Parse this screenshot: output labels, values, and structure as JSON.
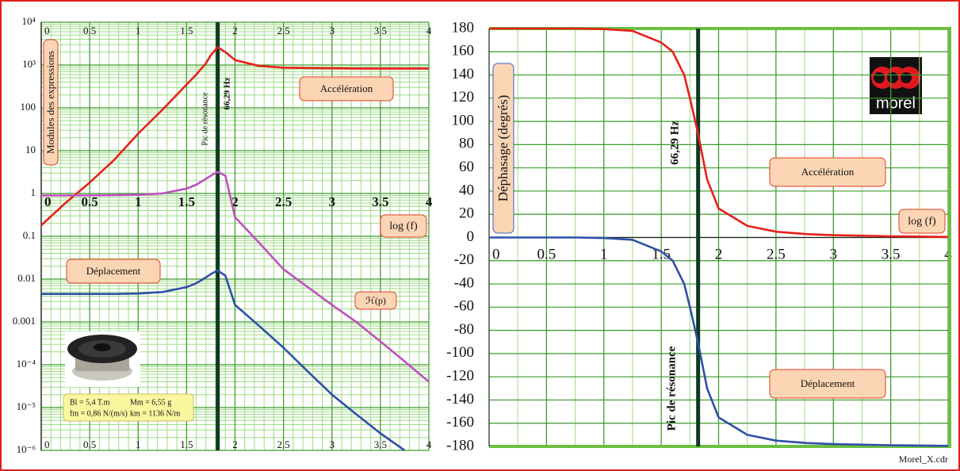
{
  "chart_data": [
    {
      "type": "line",
      "log_y": true,
      "grid": true,
      "minor_grid": true,
      "y_label": "Modules des expressions",
      "x_label": "log (f)",
      "resonance_x": 1.8215,
      "resonance_label": "66,29 Hz",
      "resonance_note": "Pic de résonance",
      "specs": [
        "Bl = 5,4 T.m",
        "Mm = 6,55 g",
        "fm = 0,86 N/(m/s)",
        "km = 1136 N/m"
      ],
      "x": [
        0,
        0.25,
        0.5,
        0.75,
        1,
        1.25,
        1.5,
        1.6,
        1.7,
        1.75,
        1.82,
        1.9,
        2,
        2.25,
        2.5,
        2.75,
        3,
        3.25,
        3.5,
        3.75,
        4
      ],
      "series": [
        {
          "name": "Accélération",
          "color": "#e8201a",
          "values": [
            0.18,
            0.6,
            1.8,
            6,
            25,
            90,
            350,
            600,
            1100,
            1700,
            2600,
            2000,
            1300,
            950,
            870,
            850,
            840,
            830,
            830,
            830,
            830
          ]
        },
        {
          "name": "Déplacement",
          "color": "#2f4fa8",
          "values": [
            0.0045,
            0.0045,
            0.0045,
            0.0045,
            0.0046,
            0.005,
            0.0065,
            0.008,
            0.011,
            0.013,
            0.016,
            0.012,
            0.0025,
            0.0008,
            0.00025,
            7e-05,
            2e-05,
            7e-06,
            2.5e-06,
            1e-06,
            null
          ]
        },
        {
          "name": "ℋ(p)",
          "color": "#c050c0",
          "values": [
            0.9,
            0.9,
            0.9,
            0.91,
            0.93,
            1.0,
            1.3,
            1.6,
            2.2,
            2.6,
            3.2,
            2.6,
            0.28,
            0.07,
            0.017,
            0.0065,
            0.0025,
            0.001,
            0.00035,
            0.00012,
            4e-05
          ]
        }
      ],
      "xlim": [
        0,
        4
      ],
      "xticks": [
        0,
        0.5,
        1,
        1.5,
        2,
        2.5,
        3,
        3.5,
        4
      ],
      "ylim": [
        1e-06,
        10000
      ],
      "yticks": [
        {
          "value": 1e-06,
          "label": "10⁻⁶"
        },
        {
          "value": 1e-05,
          "label": "10⁻⁵"
        },
        {
          "value": 0.0001,
          "label": "10⁻⁴"
        },
        0.001,
        0.01,
        0.1,
        1,
        10,
        100,
        {
          "value": 1000,
          "label": "10³"
        },
        {
          "value": 10000,
          "label": "10⁴"
        }
      ]
    },
    {
      "type": "line",
      "log_y": false,
      "grid": true,
      "minor_grid": true,
      "y_label": "Déphasage (degrés)",
      "x_label": "log (f)",
      "resonance_x": 1.8215,
      "resonance_label": "66,29 Hz",
      "resonance_note": "Pic de résonance",
      "logo": "morel",
      "footer": "Morel_X.cdr",
      "x": [
        0,
        0.25,
        0.5,
        0.75,
        1,
        1.25,
        1.5,
        1.6,
        1.7,
        1.75,
        1.82,
        1.9,
        2,
        2.25,
        2.5,
        2.75,
        3,
        3.5,
        4
      ],
      "series": [
        {
          "name": "Accélération",
          "color": "#e8201a",
          "values": [
            180,
            180,
            180,
            180,
            179.5,
            178,
            168,
            160,
            140,
            120,
            90,
            50,
            25,
            10,
            5,
            3,
            2,
            1,
            0.5
          ]
        },
        {
          "name": "Déplacement",
          "color": "#2f4fa8",
          "values": [
            0,
            0,
            0,
            0,
            -0.5,
            -2,
            -12,
            -20,
            -40,
            -60,
            -90,
            -130,
            -155,
            -170,
            -175,
            -177,
            -178,
            -179,
            -179.5
          ]
        }
      ],
      "xlim": [
        0,
        4
      ],
      "xticks": [
        0,
        0.5,
        1,
        1.5,
        2,
        2.5,
        3,
        3.5,
        4
      ],
      "ylim": [
        -180,
        180
      ],
      "yticks": [
        -180,
        -160,
        -140,
        -120,
        -100,
        -80,
        -60,
        -40,
        -20,
        0,
        20,
        40,
        60,
        80,
        100,
        120,
        140,
        160,
        180
      ]
    }
  ]
}
